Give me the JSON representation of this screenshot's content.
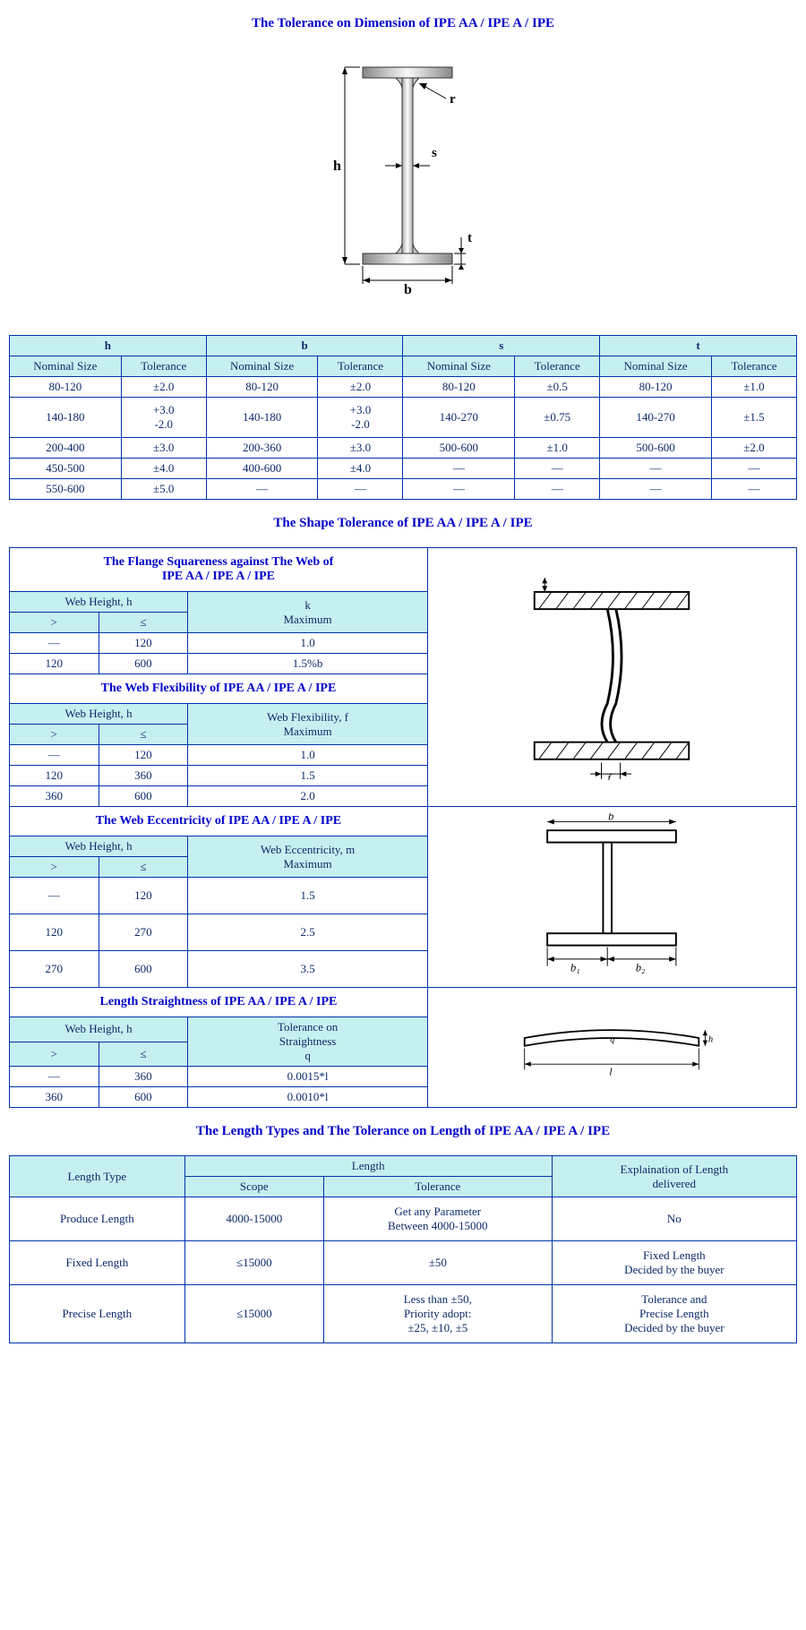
{
  "colors": {
    "border": "#0033aa",
    "header_bg": "#c6f0f0",
    "title": "#0000cc",
    "text": "#0c2a6b"
  },
  "title_dimension": "The Tolerance on Dimension of IPE AA / IPE A / IPE",
  "ibeam_diagram": {
    "labels": {
      "h": "h",
      "b": "b",
      "s": "s",
      "t": "t",
      "r": "r"
    }
  },
  "dim_table": {
    "groups": [
      "h",
      "b",
      "s",
      "t"
    ],
    "subheads": [
      "Nominal Size",
      "Tolerance"
    ],
    "rows": [
      [
        "80-120",
        "±2.0",
        "80-120",
        "±2.0",
        "80-120",
        "±0.5",
        "80-120",
        "±1.0"
      ],
      [
        "140-180",
        "+3.0\n-2.0",
        "140-180",
        "+3.0\n-2.0",
        "140-270",
        "±0.75",
        "140-270",
        "±1.5"
      ],
      [
        "200-400",
        "±3.0",
        "200-360",
        "±3.0",
        "500-600",
        "±1.0",
        "500-600",
        "±2.0"
      ],
      [
        "450-500",
        "±4.0",
        "400-600",
        "±4.0",
        "—",
        "—",
        "—",
        "—"
      ],
      [
        "550-600",
        "±5.0",
        "—",
        "—",
        "—",
        "—",
        "—",
        "—"
      ]
    ]
  },
  "title_shape": "The Shape Tolerance of IPE AA / IPE A / IPE",
  "shape": {
    "flange": {
      "title": "The Flange Squareness against The Web of\nIPE AA / IPE A / IPE",
      "head_wh": "Web Height, h",
      "head_k": "k\nMaximum",
      "gt": ">",
      "le": "≤",
      "rows": [
        [
          "—",
          "120",
          "1.0"
        ],
        [
          "120",
          "600",
          "1.5%b"
        ]
      ]
    },
    "flex": {
      "title": "The Web Flexibility of IPE AA / IPE A / IPE",
      "head_wh": "Web Height, h",
      "head_f": "Web Flexibility, f\nMaximum",
      "gt": ">",
      "le": "≤",
      "rows": [
        [
          "—",
          "120",
          "1.0"
        ],
        [
          "120",
          "360",
          "1.5"
        ],
        [
          "360",
          "600",
          "2.0"
        ]
      ]
    },
    "ecc": {
      "title": "The Web Eccentricity of IPE AA / IPE A / IPE",
      "head_wh": "Web Height, h",
      "head_m": "Web Eccentricity, m\nMaximum",
      "gt": ">",
      "le": "≤",
      "rows": [
        [
          "—",
          "120",
          "1.5"
        ],
        [
          "120",
          "270",
          "2.5"
        ],
        [
          "270",
          "600",
          "3.5"
        ]
      ]
    },
    "straight": {
      "title": "Length Straightness of IPE AA / IPE A / IPE",
      "head_wh": "Web Height, h",
      "head_q": "Tolerance on\nStraightness\nq",
      "gt": ">",
      "le": "≤",
      "rows": [
        [
          "—",
          "360",
          "0.0015*l"
        ],
        [
          "360",
          "600",
          "0.0010*l"
        ]
      ]
    }
  },
  "title_length": "The Length Types and The Tolerance on Length of IPE AA / IPE A / IPE",
  "len_table": {
    "head_type": "Length Type",
    "head_length": "Length",
    "head_scope": "Scope",
    "head_tol": "Tolerance",
    "head_expl": "Explaination of Length\ndelivered",
    "rows": [
      [
        "Produce Length",
        "4000-15000",
        "Get any Parameter\nBetween 4000-15000",
        "No"
      ],
      [
        "Fixed Length",
        "≤15000",
        "±50",
        "Fixed Length\nDecided by the buyer"
      ],
      [
        "Precise Length",
        "≤15000",
        "Less than ±50,\nPriority adopt:\n±25, ±10, ±5",
        "Tolerance and\nPrecise Length\nDecided by the buyer"
      ]
    ]
  }
}
